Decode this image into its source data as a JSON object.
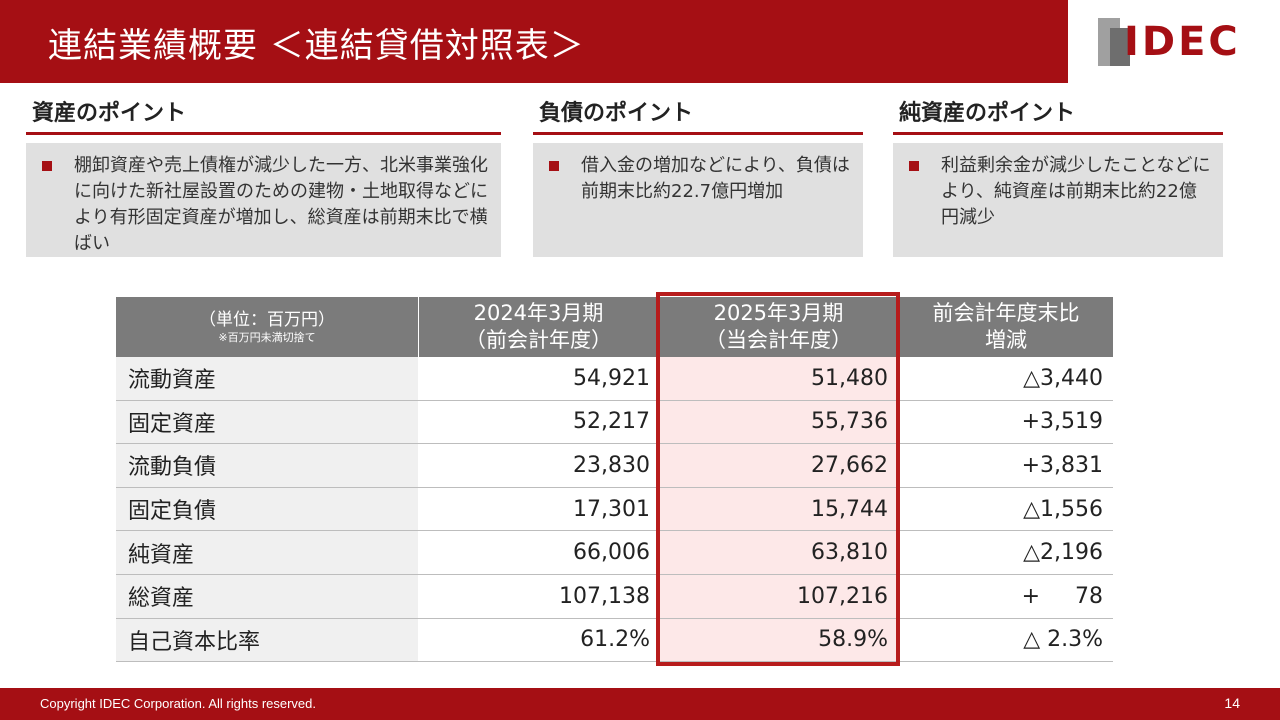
{
  "header": {
    "title": "連結業績概要 ＜連結貸借対照表＞",
    "logo_text": "IDEC"
  },
  "points": [
    {
      "heading": "資産のポイント",
      "text": "棚卸資産や売上債権が減少した一方、北米事業強化に向けた新社屋設置のための建物・土地取得などにより有形固定資産が増加し、総資産は前期末比で横ばい"
    },
    {
      "heading": "負債のポイント",
      "text": "借入金の増加などにより、負債は前期末比約22.7億円増加"
    },
    {
      "heading": "純資産のポイント",
      "text": "利益剰余金が減少したことなどにより、純資産は前期末比約22億円減少"
    }
  ],
  "table": {
    "header": {
      "unit": "（単位：百万円）",
      "unit_note": "※百万円未満切捨て",
      "prev_line1": "2024年3月期",
      "prev_line2": "（前会計年度）",
      "curr_line1": "2025年3月期",
      "curr_line2": "（当会計年度）",
      "diff_line1": "前会計年度末比",
      "diff_line2": "増減"
    },
    "rows": [
      {
        "label": "流動資産",
        "prev": "54,921",
        "curr": "51,480",
        "diff": "△3,440"
      },
      {
        "label": "固定資産",
        "prev": "52,217",
        "curr": "55,736",
        "diff": "+3,519"
      },
      {
        "label": "流動負債",
        "prev": "23,830",
        "curr": "27,662",
        "diff": "+3,831"
      },
      {
        "label": "固定負債",
        "prev": "17,301",
        "curr": "15,744",
        "diff": "△1,556"
      },
      {
        "label": "純資産",
        "prev": "66,006",
        "curr": "63,810",
        "diff": "△2,196"
      },
      {
        "label": "総資産",
        "prev": "107,138",
        "curr": "107,216",
        "diff": "+     78"
      },
      {
        "label": "自己資本比率",
        "prev": "61.2%",
        "curr": "58.9%",
        "diff": "△ 2.3%"
      }
    ]
  },
  "footer": {
    "copyright": "Copyright IDEC Corporation. All rights reserved.",
    "page": "14"
  },
  "colors": {
    "brand_red": "#a50f14",
    "header_gray": "#7b7b7b",
    "highlight_fill": "#fde8e8"
  }
}
